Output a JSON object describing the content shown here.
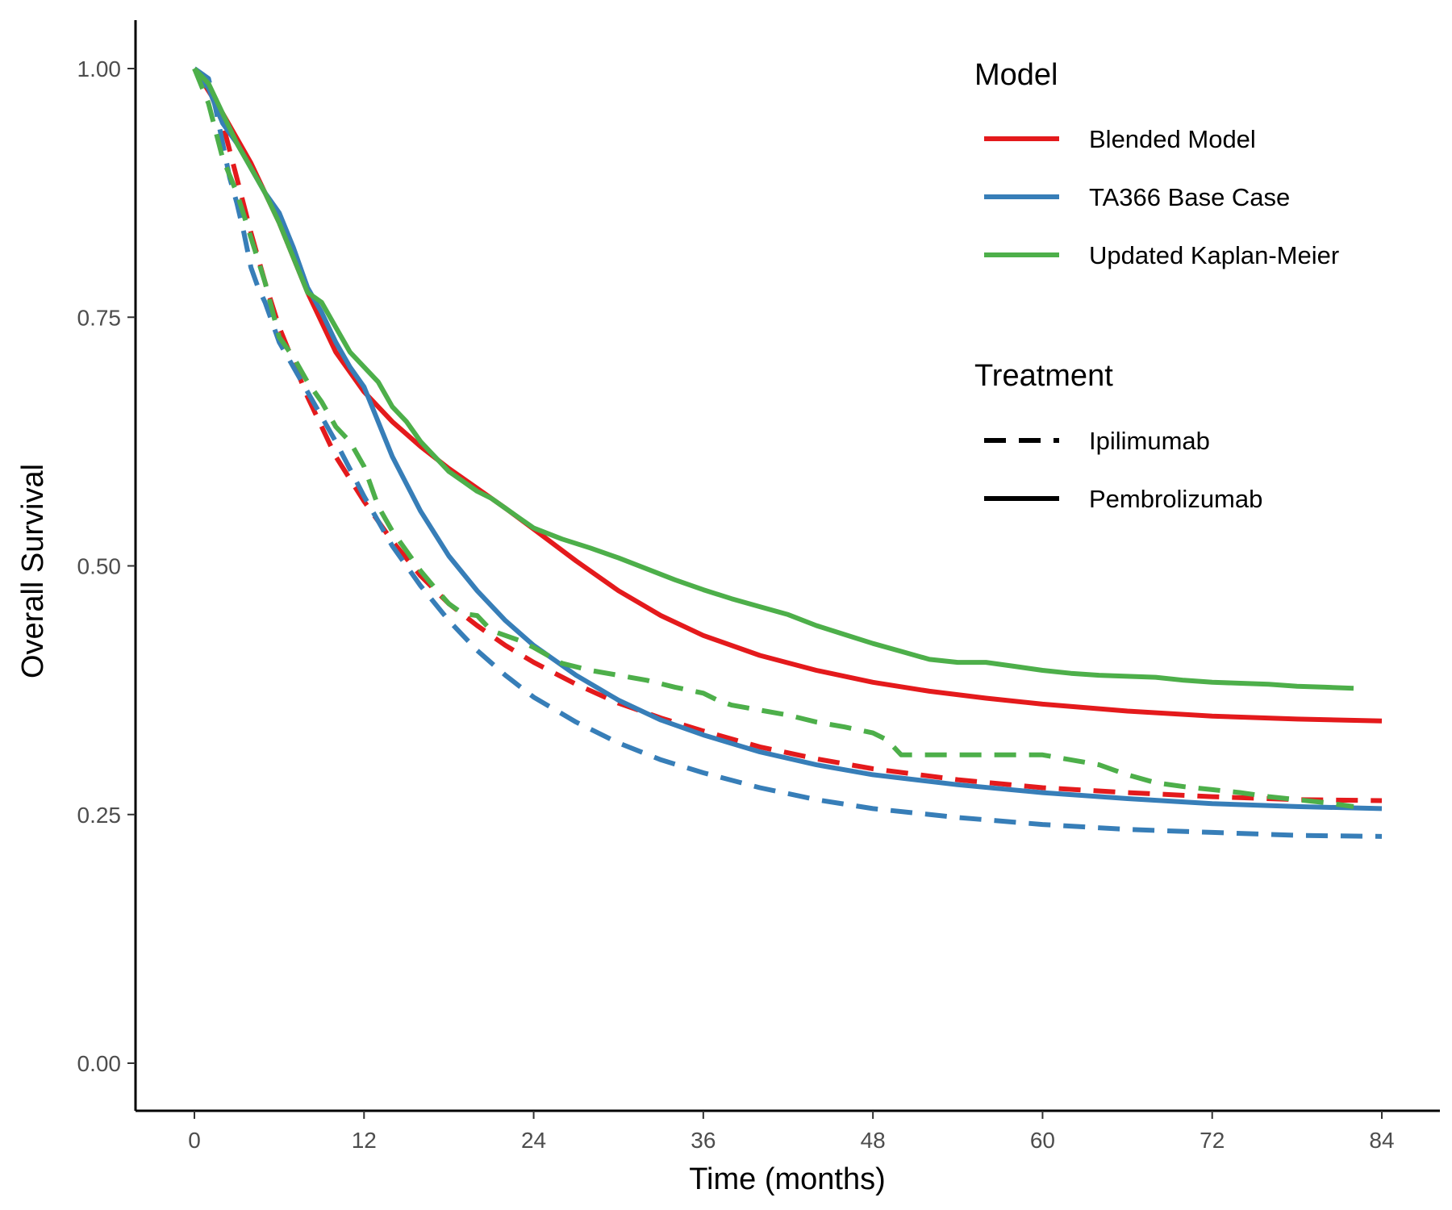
{
  "chart_data": {
    "type": "line",
    "xlabel": "Time (months)",
    "ylabel": "Overall Survival",
    "xlim": [
      0,
      84
    ],
    "ylim": [
      0,
      1
    ],
    "x_ticks": [
      0,
      12,
      24,
      36,
      48,
      60,
      72,
      84
    ],
    "y_ticks": [
      0,
      0.25,
      0.5,
      0.75,
      1
    ],
    "y_tick_labels": [
      "0.00",
      "0.25",
      "0.50",
      "0.75",
      "1.00"
    ],
    "grid": false,
    "legend_position": "top-right",
    "legend": {
      "model_title": "Model",
      "models": [
        {
          "label": "Blended Model",
          "color": "#e41a1c"
        },
        {
          "label": "TA366 Base Case",
          "color": "#377eb8"
        },
        {
          "label": "Updated Kaplan-Meier",
          "color": "#4daf4a"
        }
      ],
      "treatment_title": "Treatment",
      "treatments": [
        {
          "label": "Ipilimumab",
          "linetype": "dashed"
        },
        {
          "label": "Pembrolizumab",
          "linetype": "solid"
        }
      ]
    },
    "series": [
      {
        "model": "Blended Model",
        "treatment": "Pembrolizumab",
        "color": "#e41a1c",
        "linetype": "solid",
        "x": [
          0,
          2,
          4,
          6,
          8,
          10,
          12,
          14,
          16,
          18,
          20,
          22,
          24,
          27,
          30,
          33,
          36,
          40,
          44,
          48,
          52,
          56,
          60,
          66,
          72,
          78,
          84
        ],
        "y": [
          1.0,
          0.955,
          0.905,
          0.845,
          0.775,
          0.715,
          0.675,
          0.645,
          0.62,
          0.598,
          0.578,
          0.558,
          0.537,
          0.505,
          0.475,
          0.45,
          0.43,
          0.41,
          0.395,
          0.383,
          0.374,
          0.367,
          0.361,
          0.354,
          0.349,
          0.346,
          0.344
        ]
      },
      {
        "model": "Blended Model",
        "treatment": "Ipilimumab",
        "color": "#e41a1c",
        "linetype": "dashed",
        "x": [
          0,
          1,
          2,
          3,
          4,
          5,
          6,
          8,
          10,
          12,
          14,
          16,
          18,
          20,
          22,
          24,
          27,
          30,
          33,
          36,
          40,
          44,
          48,
          54,
          60,
          66,
          72,
          78,
          84
        ],
        "y": [
          1.0,
          0.98,
          0.945,
          0.89,
          0.835,
          0.785,
          0.74,
          0.67,
          0.61,
          0.565,
          0.525,
          0.49,
          0.462,
          0.44,
          0.42,
          0.403,
          0.381,
          0.362,
          0.347,
          0.334,
          0.318,
          0.306,
          0.296,
          0.285,
          0.277,
          0.272,
          0.268,
          0.265,
          0.264
        ]
      },
      {
        "model": "TA366 Base Case",
        "treatment": "Pembrolizumab",
        "color": "#377eb8",
        "linetype": "solid",
        "x": [
          0,
          1,
          2,
          3,
          4,
          5,
          6,
          7,
          8,
          9,
          10,
          11,
          12,
          14,
          16,
          18,
          20,
          22,
          24,
          27,
          30,
          33,
          36,
          40,
          44,
          48,
          54,
          60,
          66,
          72,
          78,
          84
        ],
        "y": [
          1.0,
          0.98,
          0.945,
          0.925,
          0.9,
          0.875,
          0.855,
          0.82,
          0.78,
          0.755,
          0.725,
          0.7,
          0.68,
          0.61,
          0.555,
          0.51,
          0.475,
          0.445,
          0.42,
          0.39,
          0.365,
          0.345,
          0.33,
          0.313,
          0.3,
          0.29,
          0.28,
          0.272,
          0.266,
          0.261,
          0.258,
          0.256
        ]
      },
      {
        "model": "TA366 Base Case",
        "treatment": "Ipilimumab",
        "color": "#377eb8",
        "linetype": "dashed",
        "x": [
          0,
          1,
          1.5,
          2,
          2.5,
          3,
          3.5,
          4,
          4.5,
          5,
          5.5,
          6,
          8,
          10,
          12,
          14,
          16,
          18,
          20,
          22,
          24,
          27,
          30,
          33,
          36,
          40,
          44,
          48,
          54,
          60,
          66,
          72,
          78,
          84
        ],
        "y": [
          1.0,
          0.99,
          0.96,
          0.925,
          0.89,
          0.865,
          0.835,
          0.8,
          0.78,
          0.765,
          0.745,
          0.725,
          0.675,
          0.625,
          0.57,
          0.52,
          0.48,
          0.445,
          0.415,
          0.39,
          0.368,
          0.343,
          0.322,
          0.305,
          0.292,
          0.277,
          0.265,
          0.256,
          0.247,
          0.24,
          0.235,
          0.232,
          0.229,
          0.228
        ]
      },
      {
        "model": "Updated Kaplan-Meier",
        "treatment": "Pembrolizumab",
        "color": "#4daf4a",
        "linetype": "solid",
        "x": [
          0,
          1,
          2,
          3,
          4,
          5,
          6,
          7,
          8,
          9,
          10,
          11,
          12,
          13,
          14,
          15,
          16,
          17,
          18,
          19,
          20,
          21,
          22,
          23,
          24,
          26,
          28,
          30,
          32,
          34,
          36,
          38,
          40,
          42,
          44,
          46,
          48,
          50,
          52,
          54,
          56,
          58,
          60,
          62,
          64,
          66,
          68,
          70,
          72,
          74,
          76,
          78,
          80,
          82
        ],
        "y": [
          1.0,
          0.985,
          0.955,
          0.925,
          0.9,
          0.875,
          0.845,
          0.81,
          0.775,
          0.765,
          0.74,
          0.715,
          0.7,
          0.685,
          0.66,
          0.645,
          0.625,
          0.61,
          0.595,
          0.585,
          0.575,
          0.568,
          0.558,
          0.548,
          0.538,
          0.527,
          0.518,
          0.508,
          0.497,
          0.486,
          0.476,
          0.467,
          0.459,
          0.451,
          0.44,
          0.431,
          0.422,
          0.414,
          0.406,
          0.403,
          0.403,
          0.399,
          0.395,
          0.392,
          0.39,
          0.389,
          0.388,
          0.385,
          0.383,
          0.382,
          0.381,
          0.379,
          0.378,
          0.377
        ]
      },
      {
        "model": "Updated Kaplan-Meier",
        "treatment": "Ipilimumab",
        "color": "#4daf4a",
        "linetype": "dashed",
        "x": [
          0,
          1,
          2,
          3,
          4,
          5,
          6,
          7,
          8,
          9,
          10,
          11,
          12,
          13,
          14,
          15,
          16,
          17,
          18,
          19,
          20,
          21,
          22,
          23,
          24,
          25,
          26,
          28,
          30,
          32,
          34,
          36,
          37,
          38,
          40,
          42,
          44,
          46,
          48,
          49,
          50,
          52,
          54,
          56,
          58,
          60,
          62,
          64,
          65,
          66,
          68,
          70,
          72,
          74,
          76,
          78,
          80,
          82
        ],
        "y": [
          1.0,
          0.965,
          0.91,
          0.875,
          0.83,
          0.785,
          0.73,
          0.71,
          0.685,
          0.665,
          0.64,
          0.625,
          0.6,
          0.56,
          0.535,
          0.515,
          0.495,
          0.478,
          0.462,
          0.452,
          0.45,
          0.435,
          0.43,
          0.425,
          0.418,
          0.41,
          0.402,
          0.395,
          0.39,
          0.385,
          0.378,
          0.372,
          0.365,
          0.36,
          0.355,
          0.35,
          0.343,
          0.338,
          0.332,
          0.325,
          0.31,
          0.31,
          0.31,
          0.31,
          0.31,
          0.31,
          0.305,
          0.3,
          0.295,
          0.29,
          0.282,
          0.278,
          0.275,
          0.272,
          0.268,
          0.265,
          0.262,
          0.258
        ]
      }
    ]
  }
}
